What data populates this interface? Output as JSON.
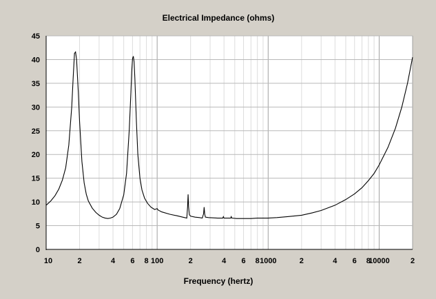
{
  "chart_data": {
    "type": "line",
    "title": "Electrical Impedance (ohms)",
    "xlabel": "Frequency (hertz)",
    "ylabel": "",
    "x_scale": "log",
    "xlim": [
      10,
      20000
    ],
    "ylim": [
      0,
      45
    ],
    "grid": true,
    "y_ticks": [
      "0",
      "5",
      "10",
      "15",
      "20",
      "25",
      "30",
      "35",
      "40",
      "45"
    ],
    "x_tick_labels": [
      {
        "value": 10,
        "label": "10"
      },
      {
        "value": 20,
        "label": "2"
      },
      {
        "value": 40,
        "label": "4"
      },
      {
        "value": 60,
        "label": "6"
      },
      {
        "value": 80,
        "label": "8"
      },
      {
        "value": 100,
        "label": "100"
      },
      {
        "value": 200,
        "label": "2"
      },
      {
        "value": 400,
        "label": "4"
      },
      {
        "value": 600,
        "label": "6"
      },
      {
        "value": 800,
        "label": "8"
      },
      {
        "value": 1000,
        "label": "1000"
      },
      {
        "value": 2000,
        "label": "2"
      },
      {
        "value": 4000,
        "label": "4"
      },
      {
        "value": 6000,
        "label": "6"
      },
      {
        "value": 8000,
        "label": "8"
      },
      {
        "value": 10000,
        "label": "10000"
      },
      {
        "value": 20000,
        "label": "2"
      }
    ],
    "series": [
      {
        "color": "#000000",
        "points": [
          [
            10,
            9.3
          ],
          [
            11,
            10.2
          ],
          [
            12,
            11.3
          ],
          [
            13,
            12.7
          ],
          [
            14,
            14.6
          ],
          [
            15,
            17.2
          ],
          [
            16,
            22
          ],
          [
            17,
            30
          ],
          [
            17.5,
            36
          ],
          [
            18,
            41.3
          ],
          [
            18.4,
            41.6
          ],
          [
            18.8,
            40
          ],
          [
            19.5,
            33
          ],
          [
            20,
            27
          ],
          [
            21,
            18.5
          ],
          [
            22,
            14
          ],
          [
            23,
            11.6
          ],
          [
            24,
            10.2
          ],
          [
            26,
            8.7
          ],
          [
            28,
            7.8
          ],
          [
            30,
            7.2
          ],
          [
            32,
            6.8
          ],
          [
            34,
            6.6
          ],
          [
            36,
            6.5
          ],
          [
            38,
            6.6
          ],
          [
            40,
            6.8
          ],
          [
            43,
            7.4
          ],
          [
            46,
            8.6
          ],
          [
            50,
            11.5
          ],
          [
            53,
            16
          ],
          [
            56,
            25
          ],
          [
            58,
            33
          ],
          [
            59,
            37.5
          ],
          [
            60,
            40.2
          ],
          [
            61,
            40.7
          ],
          [
            62,
            39.5
          ],
          [
            63,
            36
          ],
          [
            65,
            27
          ],
          [
            67,
            20
          ],
          [
            70,
            15
          ],
          [
            73,
            12.5
          ],
          [
            77,
            10.8
          ],
          [
            82,
            9.7
          ],
          [
            88,
            8.9
          ],
          [
            95,
            8.4
          ],
          [
            100,
            8.6
          ],
          [
            102,
            8.3
          ],
          [
            110,
            7.9
          ],
          [
            130,
            7.4
          ],
          [
            150,
            7.1
          ],
          [
            170,
            6.8
          ],
          [
            185,
            6.6
          ],
          [
            188,
            9
          ],
          [
            190,
            11.6
          ],
          [
            192,
            9
          ],
          [
            195,
            7.3
          ],
          [
            200,
            7
          ],
          [
            220,
            6.8
          ],
          [
            240,
            6.7
          ],
          [
            255,
            6.6
          ],
          [
            262,
            7.5
          ],
          [
            265,
            8.9
          ],
          [
            268,
            7.5
          ],
          [
            272,
            6.8
          ],
          [
            290,
            6.7
          ],
          [
            350,
            6.6
          ],
          [
            390,
            6.6
          ],
          [
            395,
            6.9
          ],
          [
            400,
            6.6
          ],
          [
            460,
            6.6
          ],
          [
            465,
            6.9
          ],
          [
            470,
            6.6
          ],
          [
            520,
            6.5
          ],
          [
            600,
            6.5
          ],
          [
            700,
            6.5
          ],
          [
            800,
            6.6
          ],
          [
            1000,
            6.6
          ],
          [
            1200,
            6.7
          ],
          [
            1500,
            6.9
          ],
          [
            2000,
            7.2
          ],
          [
            2500,
            7.7
          ],
          [
            3000,
            8.2
          ],
          [
            4000,
            9.3
          ],
          [
            5000,
            10.5
          ],
          [
            6000,
            11.7
          ],
          [
            7000,
            13
          ],
          [
            8000,
            14.5
          ],
          [
            9000,
            16
          ],
          [
            10000,
            17.8
          ],
          [
            12000,
            21.5
          ],
          [
            14000,
            25.5
          ],
          [
            16000,
            30
          ],
          [
            18000,
            35
          ],
          [
            20000,
            40.5
          ]
        ]
      }
    ]
  }
}
